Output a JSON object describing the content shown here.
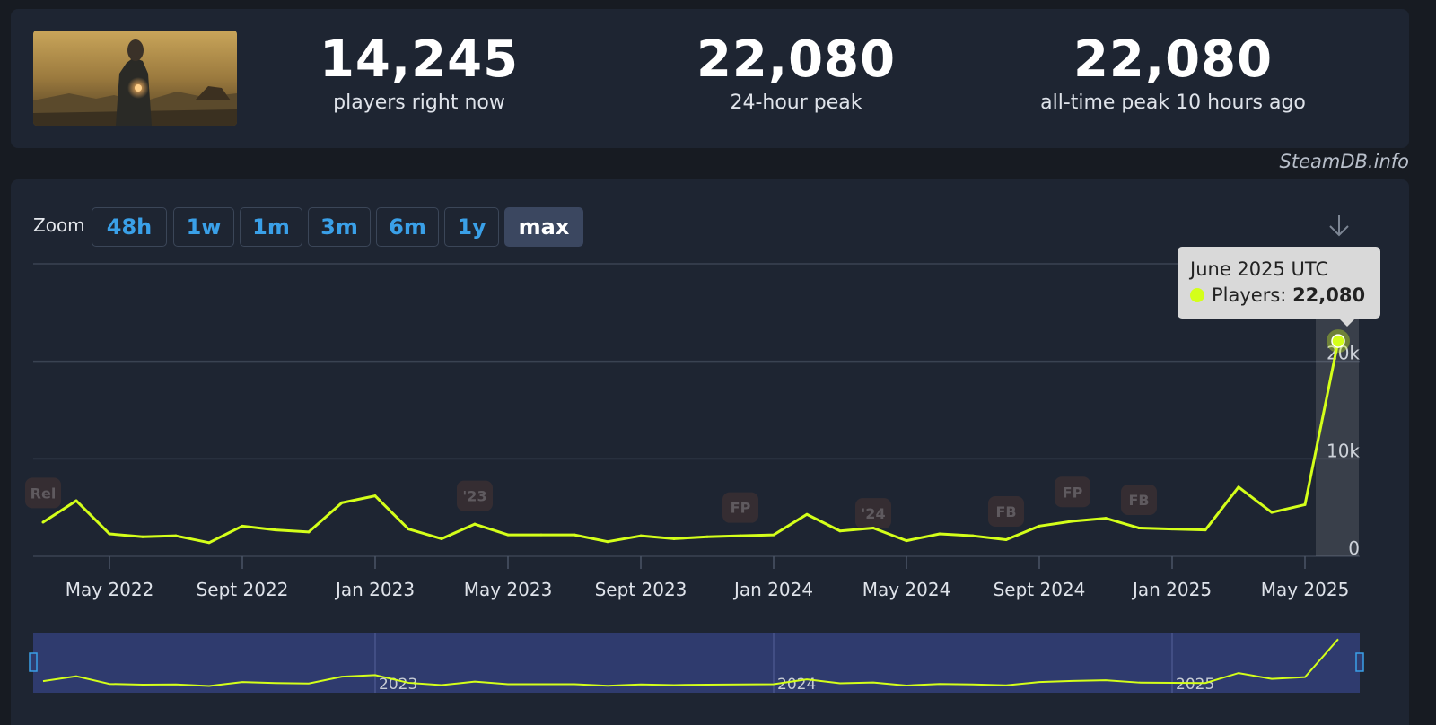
{
  "stats": [
    {
      "value": "14,245",
      "label": "players right now"
    },
    {
      "value": "22,080",
      "label": "24-hour peak"
    },
    {
      "value": "22,080",
      "label": "all-time peak 10 hours ago"
    }
  ],
  "credit": "SteamDB.info",
  "zoom": {
    "label": "Zoom",
    "buttons": [
      "48h",
      "1w",
      "1m",
      "3m",
      "6m",
      "1y",
      "max"
    ],
    "active": "max"
  },
  "tooltip": {
    "date": "June 2025 UTC",
    "series": "Players:",
    "value": "22,080"
  },
  "colors": {
    "line": "#d4ff1a",
    "accent": "#3aa0e8",
    "grid": "#3a4352",
    "navigator_bg": "#2f3b6e"
  },
  "icons": {
    "download": "download-arrow-icon"
  },
  "chart_data": {
    "type": "line",
    "title": "",
    "xlabel": "",
    "ylabel": "",
    "series": [
      {
        "name": "Players",
        "x": [
          "2022-03",
          "2022-04",
          "2022-05",
          "2022-06",
          "2022-07",
          "2022-08",
          "2022-09",
          "2022-10",
          "2022-11",
          "2022-12",
          "2023-01",
          "2023-02",
          "2023-03",
          "2023-04",
          "2023-05",
          "2023-06",
          "2023-07",
          "2023-08",
          "2023-09",
          "2023-10",
          "2023-11",
          "2023-12",
          "2024-01",
          "2024-02",
          "2024-03",
          "2024-04",
          "2024-05",
          "2024-06",
          "2024-07",
          "2024-08",
          "2024-09",
          "2024-10",
          "2024-11",
          "2024-12",
          "2025-01",
          "2025-02",
          "2025-03",
          "2025-04",
          "2025-05",
          "2025-06"
        ],
        "values": [
          3500,
          5700,
          2300,
          2000,
          2100,
          1400,
          3100,
          2700,
          2500,
          5500,
          6200,
          2800,
          1800,
          3300,
          2200,
          2200,
          2200,
          1500,
          2100,
          1800,
          2000,
          2100,
          2200,
          4300,
          2600,
          2900,
          1600,
          2300,
          2100,
          1700,
          3100,
          3600,
          3900,
          2900,
          2800,
          2700,
          7100,
          4500,
          5300,
          22080
        ]
      }
    ],
    "x_ticks": [
      "May 2022",
      "Sept 2022",
      "Jan 2023",
      "May 2023",
      "Sept 2023",
      "Jan 2024",
      "May 2024",
      "Sept 2024",
      "Jan 2025",
      "May 2025"
    ],
    "y_ticks": [
      "0",
      "10k",
      "20k"
    ],
    "ylim": [
      0,
      30000
    ],
    "grid": true,
    "annotations": [
      {
        "text": "Rel",
        "x": "2022-03",
        "y": 6500
      },
      {
        "text": "'23",
        "x": "2023-04",
        "y": 6200
      },
      {
        "text": "FP",
        "x": "2023-12",
        "y": 5000
      },
      {
        "text": "'24",
        "x": "2024-04",
        "y": 4400
      },
      {
        "text": "FB",
        "x": "2024-08",
        "y": 4600
      },
      {
        "text": "FP",
        "x": "2024-10",
        "y": 6600
      },
      {
        "text": "FB",
        "x": "2024-12",
        "y": 5800
      }
    ],
    "navigator_labels": [
      "2023",
      "2024",
      "2025"
    ],
    "highlight": {
      "x": "2025-06",
      "y": 22080
    }
  }
}
